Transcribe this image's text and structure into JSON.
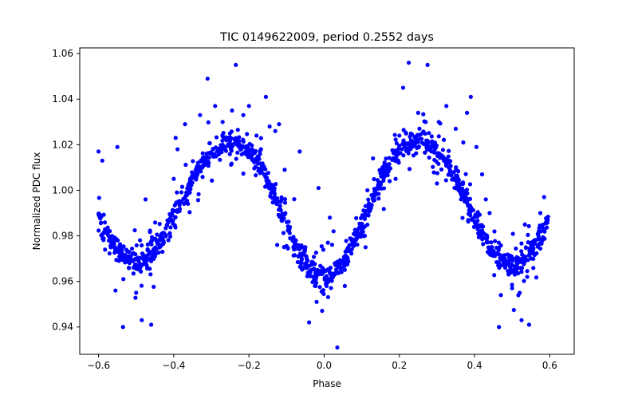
{
  "chart_data": {
    "type": "scatter",
    "title": "TIC 0149622009, period 0.2552 days",
    "xlabel": "Phase",
    "ylabel": "Normalized PDC flux",
    "xlim": [
      -0.65,
      0.665
    ],
    "ylim": [
      0.928,
      1.0625
    ],
    "x_ticks": [
      -0.6,
      -0.4,
      -0.2,
      0.0,
      0.2,
      0.4,
      0.6
    ],
    "x_tick_labels": [
      "−0.6",
      "−0.4",
      "−0.2",
      "0.0",
      "0.2",
      "0.4",
      "0.6"
    ],
    "y_ticks": [
      0.94,
      0.96,
      0.98,
      1.0,
      1.02,
      1.04,
      1.06
    ],
    "y_tick_labels": [
      "0.94",
      "0.96",
      "0.98",
      "1.00",
      "1.02",
      "1.04",
      "1.06"
    ],
    "grid": false,
    "marker_color": "#0000ff",
    "series": [
      {
        "model": {
          "description_curve": "eclipsing binary light curve",
          "maxima_phase": [
            -0.25,
            0.25
          ],
          "maxima_flux": 1.021,
          "primary_min_phase": 0.0,
          "primary_min_flux": 0.962,
          "secondary_min_phase": [
            -0.5,
            0.5
          ],
          "secondary_min_flux": 0.968,
          "points_per_unit_phase": 1100,
          "noise_sigma": 0.0025
        },
        "outliers": [
          [
            -0.6,
            1.017
          ],
          [
            -0.59,
            1.013
          ],
          [
            -0.55,
            1.019
          ],
          [
            -0.555,
            0.956
          ],
          [
            -0.535,
            0.94
          ],
          [
            -0.5,
            0.955
          ],
          [
            -0.485,
            0.943
          ],
          [
            -0.46,
            0.941
          ],
          [
            -0.475,
            0.996
          ],
          [
            -0.43,
            0.973
          ],
          [
            -0.4,
            1.005
          ],
          [
            -0.395,
            1.023
          ],
          [
            -0.39,
            1.018
          ],
          [
            -0.37,
            1.029
          ],
          [
            -0.33,
            1.033
          ],
          [
            -0.31,
            1.049
          ],
          [
            -0.29,
            1.037
          ],
          [
            -0.27,
            1.03
          ],
          [
            -0.245,
            1.035
          ],
          [
            -0.235,
            1.055
          ],
          [
            -0.215,
            1.033
          ],
          [
            -0.2,
            1.037
          ],
          [
            -0.18,
            1.024
          ],
          [
            -0.155,
            1.041
          ],
          [
            -0.145,
            1.028
          ],
          [
            -0.13,
            1.026
          ],
          [
            -0.12,
            1.029
          ],
          [
            -0.105,
            1.009
          ],
          [
            -0.065,
            1.017
          ],
          [
            -0.015,
            1.001
          ],
          [
            -0.125,
            0.976
          ],
          [
            -0.08,
            0.974
          ],
          [
            -0.045,
            0.966
          ],
          [
            -0.04,
            0.942
          ],
          [
            -0.02,
            0.951
          ],
          [
            0.01,
            0.977
          ],
          [
            0.015,
            0.988
          ],
          [
            0.025,
            0.982
          ],
          [
            0.035,
            0.931
          ],
          [
            0.055,
            0.958
          ],
          [
            0.08,
            0.977
          ],
          [
            0.11,
            0.975
          ],
          [
            0.115,
            1.0
          ],
          [
            0.13,
            1.014
          ],
          [
            0.155,
            1.01
          ],
          [
            0.19,
            1.005
          ],
          [
            0.2,
            1.024
          ],
          [
            0.21,
            1.045
          ],
          [
            0.225,
            1.056
          ],
          [
            0.25,
            1.034
          ],
          [
            0.27,
            1.03
          ],
          [
            0.275,
            1.055
          ],
          [
            0.3,
            1.003
          ],
          [
            0.305,
            1.03
          ],
          [
            0.325,
            1.037
          ],
          [
            0.35,
            1.027
          ],
          [
            0.37,
            1.021
          ],
          [
            0.38,
            1.034
          ],
          [
            0.39,
            1.041
          ],
          [
            0.405,
            1.019
          ],
          [
            0.42,
            1.007
          ],
          [
            0.43,
            0.996
          ],
          [
            0.44,
            0.99
          ],
          [
            0.445,
            0.975
          ],
          [
            0.47,
            0.954
          ],
          [
            0.465,
            0.94
          ],
          [
            0.5,
            0.957
          ],
          [
            0.52,
            0.955
          ],
          [
            0.525,
            0.943
          ],
          [
            0.54,
            0.962
          ],
          [
            0.545,
            0.941
          ],
          [
            0.555,
            0.973
          ],
          [
            0.56,
            0.978
          ],
          [
            0.575,
            0.99
          ],
          [
            0.585,
            0.997
          ]
        ]
      }
    ]
  }
}
